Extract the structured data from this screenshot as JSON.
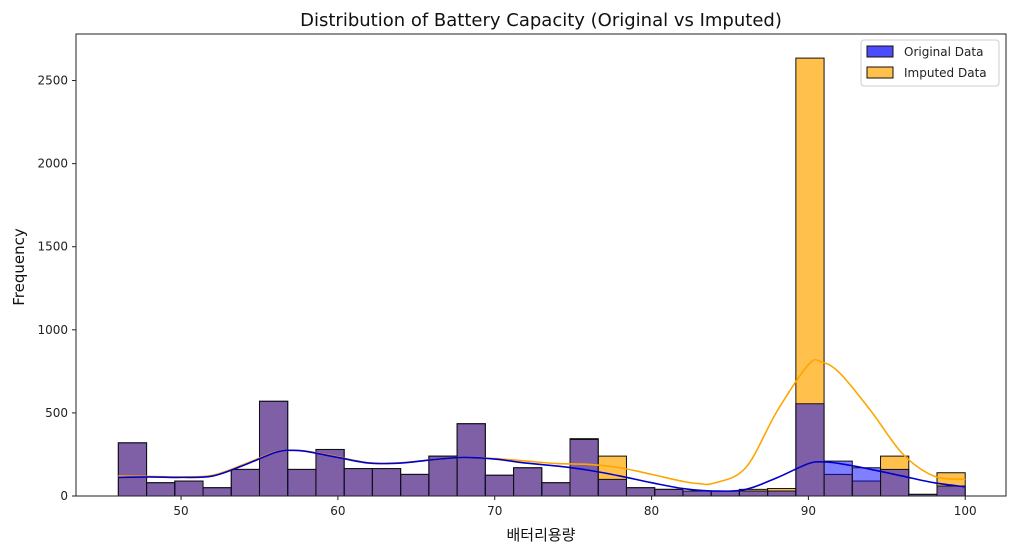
{
  "chart_data": {
    "type": "bar",
    "title": "Distribution of Battery Capacity (Original vs Imputed)",
    "xlabel": "배터리용량",
    "ylabel": "Frequency",
    "xlim": [
      43.3,
      102.6
    ],
    "ylim": [
      0,
      2780
    ],
    "xticks": [
      50,
      60,
      70,
      80,
      90,
      100
    ],
    "yticks": [
      0,
      500,
      1000,
      1500,
      2000,
      2500
    ],
    "bin_start": 46,
    "bin_width": 1.8,
    "legend": "top-right",
    "grid": false,
    "series": [
      {
        "name": "Original Data",
        "color": "#0000ff",
        "kde_color": "#0000cc",
        "values": [
          320,
          80,
          90,
          50,
          160,
          570,
          160,
          280,
          165,
          165,
          130,
          240,
          435,
          125,
          170,
          80,
          340,
          100,
          50,
          40,
          30,
          30,
          30,
          30,
          555,
          210,
          170,
          160,
          10,
          60
        ],
        "kde": [
          [
            46,
            112
          ],
          [
            48,
            115
          ],
          [
            50,
            112
          ],
          [
            52,
            120
          ],
          [
            54,
            185
          ],
          [
            56,
            262
          ],
          [
            57,
            275
          ],
          [
            58,
            268
          ],
          [
            60,
            232
          ],
          [
            62,
            198
          ],
          [
            64,
            198
          ],
          [
            66,
            218
          ],
          [
            68,
            232
          ],
          [
            70,
            222
          ],
          [
            72,
            198
          ],
          [
            74,
            180
          ],
          [
            76,
            155
          ],
          [
            78,
            120
          ],
          [
            80,
            80
          ],
          [
            82,
            45
          ],
          [
            84,
            30
          ],
          [
            86,
            40
          ],
          [
            88,
            110
          ],
          [
            90,
            195
          ],
          [
            91,
            205
          ],
          [
            92,
            195
          ],
          [
            94,
            160
          ],
          [
            96,
            120
          ],
          [
            98,
            80
          ],
          [
            100,
            55
          ]
        ]
      },
      {
        "name": "Imputed Data",
        "color": "#ffa500",
        "kde_color": "#ffa500",
        "values": [
          320,
          80,
          90,
          50,
          160,
          570,
          160,
          280,
          165,
          165,
          130,
          240,
          435,
          125,
          170,
          80,
          345,
          240,
          50,
          40,
          30,
          30,
          40,
          45,
          2635,
          130,
          90,
          240,
          10,
          140
        ],
        "kde": [
          [
            46,
            120
          ],
          [
            48,
            118
          ],
          [
            50,
            115
          ],
          [
            52,
            125
          ],
          [
            54,
            190
          ],
          [
            56,
            265
          ],
          [
            57,
            275
          ],
          [
            58,
            270
          ],
          [
            60,
            235
          ],
          [
            62,
            200
          ],
          [
            64,
            200
          ],
          [
            66,
            218
          ],
          [
            68,
            232
          ],
          [
            70,
            225
          ],
          [
            72,
            210
          ],
          [
            74,
            195
          ],
          [
            76,
            190
          ],
          [
            78,
            170
          ],
          [
            80,
            130
          ],
          [
            82,
            88
          ],
          [
            83,
            75
          ],
          [
            84,
            78
          ],
          [
            86,
            170
          ],
          [
            88,
            510
          ],
          [
            90,
            790
          ],
          [
            90.8,
            808
          ],
          [
            92,
            740
          ],
          [
            94,
            510
          ],
          [
            96,
            255
          ],
          [
            98,
            120
          ],
          [
            100,
            100
          ]
        ]
      }
    ]
  }
}
